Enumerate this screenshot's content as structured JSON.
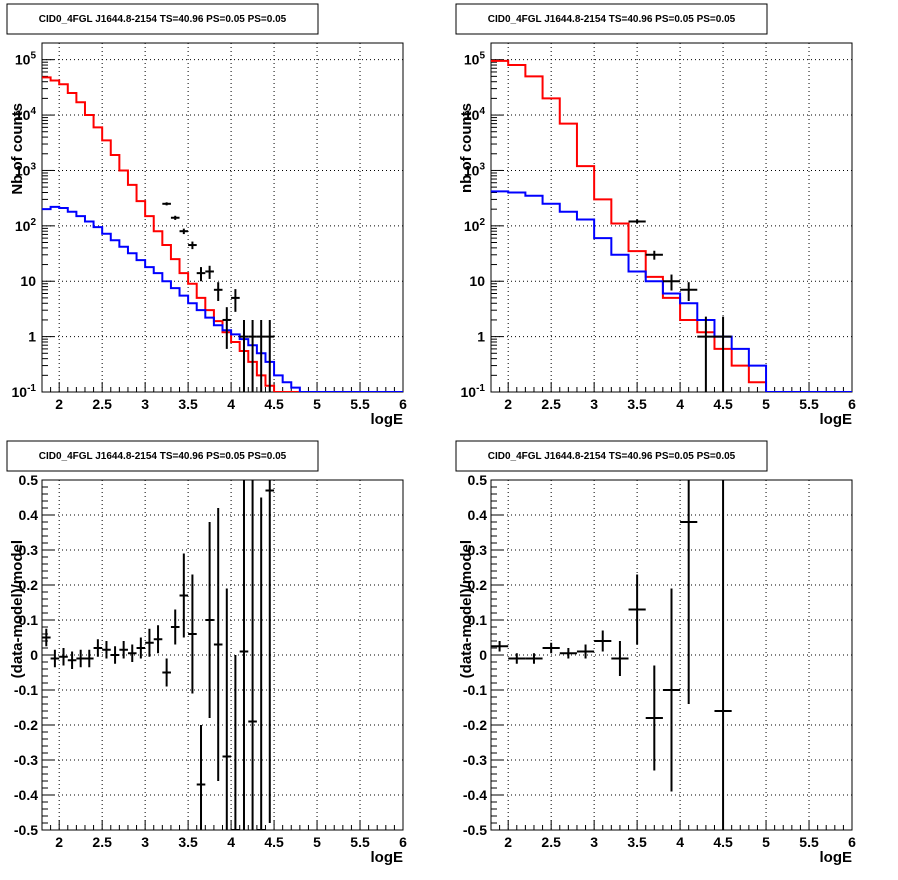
{
  "colors": {
    "red": "#ff0000",
    "blue": "#0000ff",
    "black": "#000000",
    "grid": "#000000"
  },
  "panel_title": "CID0_4FGL J1644.8-2154 TS=40.96 PS=0.05 PS=0.05",
  "chart_data": [
    {
      "type": "line",
      "id": "top-left",
      "title": "CID0_4FGL J1644.8-2154 TS=40.96 PS=0.05 PS=0.05",
      "xlabel": "logE",
      "ylabel": "Nb of counts",
      "xlim": [
        1.8,
        6.0
      ],
      "ylim": [
        0.1,
        200000
      ],
      "yscale": "log",
      "grid": true,
      "x_ticks": [
        "2",
        "2.5",
        "3",
        "3.5",
        "4",
        "4.5",
        "5",
        "5.5",
        "6"
      ],
      "y_ticks": [
        "10^-1",
        "1",
        "10",
        "10^2",
        "10^3",
        "10^4",
        "10^5"
      ],
      "bin_width": 0.1,
      "series": [
        {
          "color": "red",
          "kind": "hist",
          "bin_left": [
            1.8,
            1.9,
            2.0,
            2.1,
            2.2,
            2.3,
            2.4,
            2.5,
            2.6,
            2.7,
            2.8,
            2.9,
            3.0,
            3.1,
            3.2,
            3.3,
            3.4,
            3.5,
            3.6,
            3.7,
            3.8,
            3.9,
            4.0,
            4.1,
            4.2,
            4.3,
            4.4,
            4.5,
            4.6,
            4.7,
            4.8,
            4.9,
            5.0,
            5.1,
            5.2,
            5.3,
            5.4,
            5.5,
            5.6,
            5.7,
            5.8,
            5.9
          ],
          "values": [
            48000,
            42000,
            36000,
            25000,
            17000,
            10000,
            6000,
            3500,
            1900,
            1000,
            550,
            280,
            150,
            80,
            45,
            25,
            14,
            9,
            5,
            3,
            1.9,
            1.2,
            0.8,
            0.55,
            0.35,
            0.2,
            0.13,
            0.1,
            0.1,
            0.1,
            0.1,
            0.1,
            0.1,
            0.1,
            0.1,
            0.1,
            0.1,
            0.1,
            0.1,
            0.1,
            0.1,
            0.1
          ]
        },
        {
          "color": "blue",
          "kind": "hist",
          "bin_left": [
            1.8,
            1.9,
            2.0,
            2.1,
            2.2,
            2.3,
            2.4,
            2.5,
            2.6,
            2.7,
            2.8,
            2.9,
            3.0,
            3.1,
            3.2,
            3.3,
            3.4,
            3.5,
            3.6,
            3.7,
            3.8,
            3.9,
            4.0,
            4.1,
            4.2,
            4.3,
            4.4,
            4.5,
            4.6,
            4.7,
            4.8,
            4.9,
            5.0,
            5.1,
            5.2,
            5.3,
            5.4,
            5.5,
            5.6,
            5.7,
            5.8,
            5.9
          ],
          "values": [
            200,
            220,
            210,
            180,
            150,
            120,
            95,
            72,
            55,
            42,
            32,
            24,
            18,
            14,
            10,
            7.5,
            5.5,
            4,
            3,
            2.2,
            1.6,
            1.3,
            1.1,
            0.9,
            0.7,
            0.5,
            0.35,
            0.2,
            0.15,
            0.12,
            0.1,
            0.1,
            0.1,
            0.1,
            0.1,
            0.1,
            0.1,
            0.1,
            0.1,
            0.1,
            0.1,
            0.1
          ]
        },
        {
          "color": "black",
          "kind": "points",
          "x": [
            3.25,
            3.35,
            3.45,
            3.55,
            3.65,
            3.75,
            3.85,
            3.95,
            4.05,
            4.15,
            4.25,
            4.35,
            4.45
          ],
          "y": [
            250,
            140,
            80,
            45,
            14,
            15,
            7,
            2,
            5,
            1,
            1,
            1,
            1
          ],
          "yerr_low": [
            16,
            12,
            9,
            7,
            4,
            4,
            2.6,
            1.4,
            2.2,
            0.98,
            0.98,
            0.98,
            0.98
          ],
          "yerr_high": [
            16,
            12,
            9,
            7,
            4,
            4,
            2.6,
            1.4,
            2.2,
            1,
            1,
            1,
            1
          ]
        }
      ]
    },
    {
      "type": "line",
      "id": "top-right",
      "title": "CID0_4FGL J1644.8-2154 TS=40.96 PS=0.05 PS=0.05",
      "xlabel": "logE",
      "ylabel": "nb of counts",
      "xlim": [
        1.8,
        6.0
      ],
      "ylim": [
        0.1,
        200000
      ],
      "yscale": "log",
      "grid": true,
      "x_ticks": [
        "2",
        "2.5",
        "3",
        "3.5",
        "4",
        "4.5",
        "5",
        "5.5",
        "6"
      ],
      "y_ticks": [
        "10^-1",
        "1",
        "10",
        "10^2",
        "10^3",
        "10^4",
        "10^5"
      ],
      "bin_width": 0.2,
      "series": [
        {
          "color": "red",
          "kind": "hist",
          "bin_left": [
            1.8,
            2.0,
            2.2,
            2.4,
            2.6,
            2.8,
            3.0,
            3.2,
            3.4,
            3.6,
            3.8,
            4.0,
            4.2,
            4.4,
            4.6,
            4.8,
            5.0,
            5.2,
            5.4,
            5.6,
            5.8
          ],
          "values": [
            95000,
            80000,
            50000,
            20000,
            7000,
            1200,
            300,
            110,
            35,
            12,
            5,
            2,
            1.2,
            0.6,
            0.3,
            0.15,
            0.1,
            0.1,
            0.1,
            0.1,
            0.1
          ]
        },
        {
          "color": "blue",
          "kind": "hist",
          "bin_left": [
            1.8,
            2.0,
            2.2,
            2.4,
            2.6,
            2.8,
            3.0,
            3.2,
            3.4,
            3.6,
            3.8,
            4.0,
            4.2,
            4.4,
            4.6,
            4.8,
            5.0,
            5.2,
            5.4,
            5.6,
            5.8
          ],
          "values": [
            420,
            400,
            350,
            250,
            180,
            130,
            60,
            30,
            15,
            10,
            6,
            4,
            2,
            1,
            0.6,
            0.3,
            0.1,
            0.1,
            0.1,
            0.1,
            0.1
          ]
        },
        {
          "color": "black",
          "kind": "points",
          "x": [
            3.5,
            3.7,
            3.9,
            4.1,
            4.3,
            4.5
          ],
          "y": [
            120,
            30,
            10,
            7,
            1,
            1
          ],
          "yerr_low": [
            11,
            5.5,
            3.2,
            2.6,
            0.98,
            0.98
          ],
          "yerr_high": [
            11,
            5.5,
            3.2,
            2.6,
            1.3,
            1.3
          ]
        }
      ]
    },
    {
      "type": "scatter",
      "id": "bottom-left",
      "title": "CID0_4FGL J1644.8-2154 TS=40.96 PS=0.05 PS=0.05",
      "xlabel": "logE",
      "ylabel": "(data-model)/model",
      "xlim": [
        1.8,
        6.0
      ],
      "ylim": [
        -0.5,
        0.5
      ],
      "grid": true,
      "x_ticks": [
        "2",
        "2.5",
        "3",
        "3.5",
        "4",
        "4.5",
        "5",
        "5.5",
        "6"
      ],
      "y_ticks": [
        "-0.5",
        "-0.4",
        "-0.3",
        "-0.2",
        "-0.1",
        "0",
        "0.1",
        "0.2",
        "0.3",
        "0.4",
        "0.5"
      ],
      "x_halfwidth": 0.05,
      "series": [
        {
          "color": "black",
          "kind": "points",
          "x": [
            1.85,
            1.95,
            2.05,
            2.15,
            2.25,
            2.35,
            2.45,
            2.55,
            2.65,
            2.75,
            2.85,
            2.95,
            3.05,
            3.15,
            3.25,
            3.35,
            3.45,
            3.55,
            3.65,
            3.75,
            3.85,
            3.95,
            4.05,
            4.15,
            4.25,
            4.35,
            4.45
          ],
          "y": [
            0.05,
            -0.01,
            -0.005,
            -0.015,
            -0.01,
            -0.01,
            0.02,
            0.015,
            0.0,
            0.015,
            0.005,
            0.02,
            0.035,
            0.045,
            -0.05,
            0.08,
            0.17,
            0.06,
            -0.37,
            0.1,
            0.03,
            -0.29,
            -0.5,
            0.01,
            -0.19,
            -0.5,
            0.47
          ],
          "yerr": [
            0.025,
            0.025,
            0.025,
            0.025,
            0.025,
            0.025,
            0.025,
            0.025,
            0.025,
            0.025,
            0.025,
            0.03,
            0.04,
            0.04,
            0.04,
            0.05,
            0.12,
            0.17,
            0.17,
            0.28,
            0.39,
            0.48,
            0.5,
            0.95,
            0.95,
            0.95,
            0.95
          ]
        }
      ]
    },
    {
      "type": "scatter",
      "id": "bottom-right",
      "title": "CID0_4FGL J1644.8-2154 TS=40.96 PS=0.05 PS=0.05",
      "xlabel": "logE",
      "ylabel": "(data-model)/model",
      "xlim": [
        1.8,
        6.0
      ],
      "ylim": [
        -0.5,
        0.5
      ],
      "grid": true,
      "x_ticks": [
        "2",
        "2.5",
        "3",
        "3.5",
        "4",
        "4.5",
        "5",
        "5.5",
        "6"
      ],
      "y_ticks": [
        "-0.5",
        "-0.4",
        "-0.3",
        "-0.2",
        "-0.1",
        "0",
        "0.1",
        "0.2",
        "0.3",
        "0.4",
        "0.5"
      ],
      "x_halfwidth": 0.1,
      "series": [
        {
          "color": "black",
          "kind": "points",
          "x": [
            1.9,
            2.1,
            2.3,
            2.5,
            2.7,
            2.9,
            3.1,
            3.3,
            3.5,
            3.7,
            3.9,
            4.1,
            4.5
          ],
          "y": [
            0.025,
            -0.01,
            -0.01,
            0.02,
            0.005,
            0.01,
            0.04,
            -0.01,
            0.13,
            -0.18,
            -0.1,
            0.38,
            -0.16
          ],
          "yerr": [
            0.015,
            0.015,
            0.015,
            0.015,
            0.015,
            0.02,
            0.03,
            0.05,
            0.1,
            0.15,
            0.29,
            0.52,
            0.9
          ]
        }
      ]
    }
  ]
}
